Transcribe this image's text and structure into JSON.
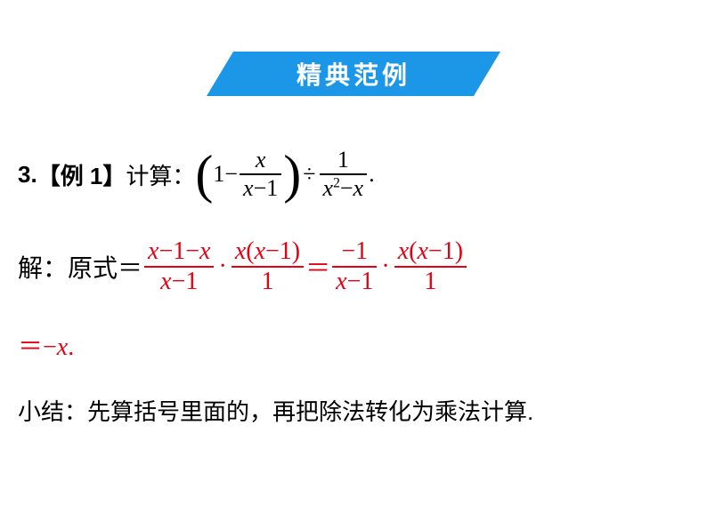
{
  "banner": {
    "title": "精典范例",
    "color": "#1c97e8",
    "text_color": "#ffffff",
    "fontsize": 28
  },
  "problem": {
    "number": "3.",
    "label": "【例 1】",
    "prompt": "计算：",
    "expr_open": "(",
    "expr_one": "1",
    "expr_minus": "−",
    "frac1_num": "x",
    "frac1_den_a": "x",
    "frac1_den_op": "−",
    "frac1_den_b": "1",
    "expr_close": ")",
    "div": "÷",
    "frac2_num": "1",
    "frac2_den_a": "x",
    "frac2_den_exp": "2",
    "frac2_den_op": "−",
    "frac2_den_b": "x",
    "period": "."
  },
  "solution": {
    "prefix": "解：原式＝",
    "f1_num": "x−1−x",
    "f1_den": "x−1",
    "dot": "·",
    "f2_num": "x(x−1)",
    "f2_den": "1",
    "eq": "＝",
    "f3_num": "−1",
    "f3_den": "x−1",
    "f4_num": "x(x−1)",
    "f4_den": "1",
    "line3": "＝−x.",
    "color": "#e60012"
  },
  "footnote": {
    "text": "小结：先算括号里面的，再把除法转化为乘法计算."
  },
  "style": {
    "body_fontsize": 26,
    "solution_fontsize": 28,
    "background": "#ffffff",
    "text_color": "#000000",
    "highlight_color": "#e60012"
  }
}
